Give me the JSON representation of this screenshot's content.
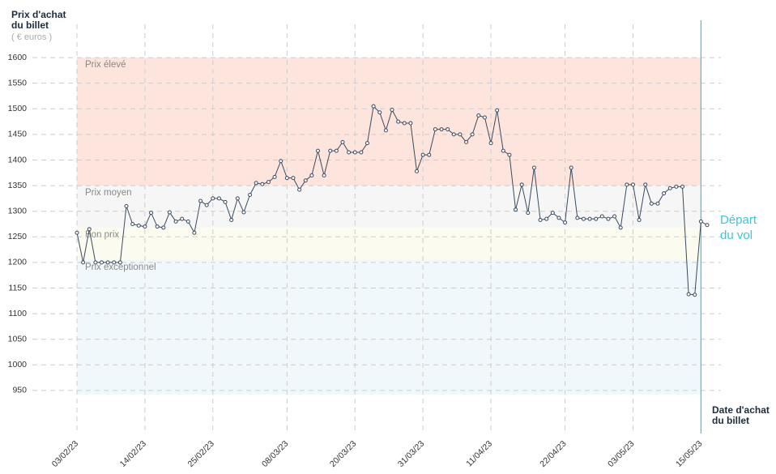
{
  "chart_data": {
    "type": "line",
    "y_label": "Prix d'achat du billet",
    "y_unit": "( € euros )",
    "x_label": "Date d'achat du billet",
    "categories": [
      "03/02/23",
      null,
      null,
      null,
      null,
      null,
      null,
      null,
      null,
      null,
      null,
      "14/02/23",
      null,
      null,
      null,
      null,
      null,
      null,
      null,
      null,
      null,
      null,
      "25/02/23",
      null,
      null,
      null,
      null,
      null,
      null,
      null,
      null,
      null,
      null,
      null,
      "08/03/23",
      null,
      null,
      null,
      null,
      null,
      null,
      null,
      null,
      null,
      null,
      "20/03/23",
      null,
      null,
      null,
      null,
      null,
      null,
      null,
      null,
      null,
      null,
      "31/03/23",
      null,
      null,
      null,
      null,
      null,
      null,
      null,
      null,
      null,
      null,
      "11/04/23",
      null,
      null,
      null,
      null,
      null,
      null,
      null,
      null,
      null,
      null,
      null,
      "22/04/23",
      null,
      null,
      null,
      null,
      null,
      null,
      null,
      null,
      null,
      null,
      "03/05/23",
      null,
      null,
      null,
      null,
      null,
      null,
      null,
      null,
      null,
      null,
      "15/05/23",
      null
    ],
    "series": [
      {
        "color": "#3a4a5e",
        "values": [
          1258,
          1200,
          1265,
          1200,
          1200,
          1200,
          1200,
          1200,
          1310,
          1275,
          1272,
          1270,
          1297,
          1270,
          1268,
          1298,
          1280,
          1285,
          1280,
          1258,
          1320,
          1312,
          1325,
          1325,
          1318,
          1283,
          1325,
          1298,
          1332,
          1355,
          1353,
          1357,
          1367,
          1398,
          1365,
          1365,
          1342,
          1360,
          1370,
          1418,
          1370,
          1418,
          1418,
          1435,
          1415,
          1415,
          1415,
          1433,
          1505,
          1493,
          1458,
          1498,
          1475,
          1472,
          1472,
          1378,
          1410,
          1410,
          1460,
          1460,
          1460,
          1450,
          1450,
          1435,
          1450,
          1487,
          1483,
          1433,
          1497,
          1418,
          1410,
          1303,
          1352,
          1297,
          1385,
          1283,
          1285,
          1297,
          1287,
          1278,
          1385,
          1287,
          1285,
          1285,
          1285,
          1290,
          1285,
          1290,
          1268,
          1352,
          1352,
          1283,
          1352,
          1315,
          1315,
          1335,
          1345,
          1348,
          1348,
          1138,
          1137,
          1280,
          1273
        ]
      }
    ],
    "bands": [
      {
        "name": "Prix élevé",
        "from": 1350,
        "to": 1600,
        "color": "#fde4dd"
      },
      {
        "name": "Prix moyen",
        "from": 1268,
        "to": 1350,
        "color": "#f6f6f6"
      },
      {
        "name": "Bon prix",
        "from": 1205,
        "to": 1268,
        "color": "#fbfbef"
      },
      {
        "name": "Prix exceptionnel",
        "from": 942,
        "to": 1205,
        "color": "#f1f8fc"
      }
    ],
    "departure": {
      "label": "Départ du vol",
      "x": "15/05/23",
      "color": "#3cc6dd"
    },
    "ylim": [
      866,
      1665
    ],
    "yticks": [
      950,
      1000,
      1050,
      1100,
      1150,
      1200,
      1250,
      1300,
      1350,
      1400,
      1450,
      1500,
      1550,
      1600
    ],
    "grid": true
  }
}
